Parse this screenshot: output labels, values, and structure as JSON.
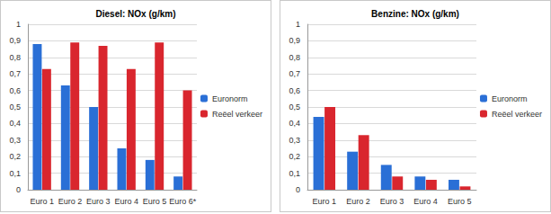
{
  "chart_data": [
    {
      "type": "bar",
      "title": "Diesel: NOx (g/km)",
      "categories": [
        "Euro 1",
        "Euro 2",
        "Euro 3",
        "Euro 4",
        "Euro 5",
        "Euro 6*"
      ],
      "series": [
        {
          "name": "Euronorm",
          "color": "#2a6fd6",
          "values": [
            0.88,
            0.63,
            0.5,
            0.25,
            0.18,
            0.08
          ]
        },
        {
          "name": "Reëel verkeer",
          "color": "#d9262e",
          "values": [
            0.73,
            0.89,
            0.87,
            0.73,
            0.89,
            0.6
          ]
        }
      ],
      "ylim": [
        0,
        1
      ],
      "yticks": [
        0,
        {
          "value": 0.1,
          "label": "0,1"
        },
        {
          "value": 0.2,
          "label": "0,2"
        },
        {
          "value": 0.3,
          "label": "0,3"
        },
        {
          "value": 0.4,
          "label": "0,4"
        },
        {
          "value": 0.5,
          "label": "0,5"
        },
        {
          "value": 0.6,
          "label": "0,6"
        },
        {
          "value": 0.7,
          "label": "0,7"
        },
        {
          "value": 0.8,
          "label": "0,8"
        },
        {
          "value": 0.9,
          "label": "0,9"
        },
        1
      ],
      "grid": true,
      "legend": "right"
    },
    {
      "type": "bar",
      "title": "Benzine: NOx (g/km)",
      "categories": [
        "Euro 1",
        "Euro 2",
        "Euro 3",
        "Euro 4",
        "Euro 5"
      ],
      "series": [
        {
          "name": "Euronorm",
          "color": "#2a6fd6",
          "values": [
            0.44,
            0.23,
            0.15,
            0.08,
            0.06
          ]
        },
        {
          "name": "Reëel verkeer",
          "color": "#d9262e",
          "values": [
            0.5,
            0.33,
            0.08,
            0.06,
            0.02
          ]
        }
      ],
      "ylim": [
        0,
        1
      ],
      "yticks": [
        0,
        {
          "value": 0.1,
          "label": "0,1"
        },
        {
          "value": 0.2,
          "label": "0,2"
        },
        {
          "value": 0.3,
          "label": "0,3"
        },
        {
          "value": 0.4,
          "label": "0,4"
        },
        {
          "value": 0.5,
          "label": "0,5"
        },
        {
          "value": 0.6,
          "label": "0,6"
        },
        {
          "value": 0.7,
          "label": "0,7"
        },
        {
          "value": 0.8,
          "label": "0,8"
        },
        {
          "value": 0.9,
          "label": "0,9"
        },
        1
      ],
      "grid": true,
      "legend": "right"
    }
  ]
}
